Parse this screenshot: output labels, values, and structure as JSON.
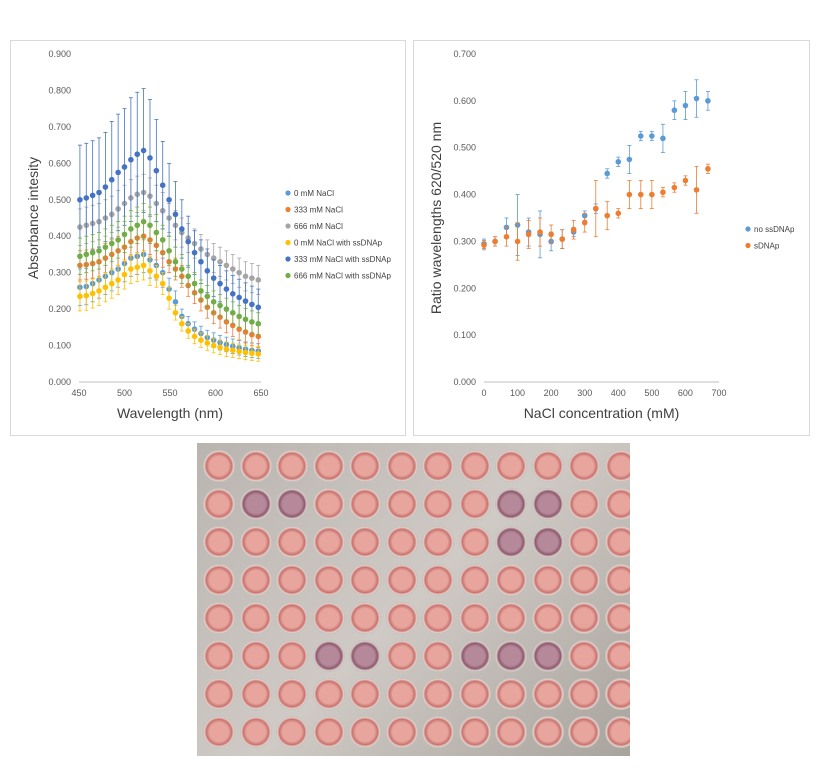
{
  "chart_data": [
    {
      "type": "scatter",
      "xlabel": "Wavelength (nm)",
      "ylabel": "Absorbance intesity",
      "xlim": [
        450,
        650
      ],
      "ylim": [
        0,
        0.9
      ],
      "x_ticks": [
        "450",
        "500",
        "550",
        "600",
        "650"
      ],
      "y_ticks": [
        "0.000",
        "0.100",
        "0.200",
        "0.300",
        "0.400",
        "0.500",
        "0.600",
        "0.700",
        "0.800",
        "0.900"
      ],
      "legend_position": "right",
      "x": [
        451,
        458,
        465,
        472,
        479,
        486,
        493,
        500,
        507,
        514,
        521,
        528,
        535,
        542,
        549,
        556,
        563,
        570,
        577,
        584,
        591,
        598,
        605,
        612,
        619,
        626,
        633,
        640,
        647
      ],
      "series": [
        {
          "name": "0 mM NaCl",
          "color": "#5b9bd5",
          "values": [
            0.26,
            0.262,
            0.27,
            0.28,
            0.29,
            0.3,
            0.31,
            0.325,
            0.34,
            0.345,
            0.35,
            0.335,
            0.32,
            0.3,
            0.255,
            0.22,
            0.18,
            0.16,
            0.145,
            0.133,
            0.122,
            0.115,
            0.108,
            0.103,
            0.098,
            0.094,
            0.09,
            0.087,
            0.085
          ],
          "errors": [
            0.05,
            0.05,
            0.05,
            0.05,
            0.05,
            0.05,
            0.05,
            0.05,
            0.05,
            0.05,
            0.05,
            0.05,
            0.04,
            0.04,
            0.03,
            0.03,
            0.02,
            0.02,
            0.02,
            0.02,
            0.02,
            0.02,
            0.02,
            0.02,
            0.02,
            0.02,
            0.02,
            0.02,
            0.02
          ]
        },
        {
          "name": "333 mM NaCl",
          "color": "#ed7d31",
          "values": [
            0.32,
            0.322,
            0.325,
            0.33,
            0.34,
            0.35,
            0.36,
            0.37,
            0.385,
            0.395,
            0.4,
            0.39,
            0.375,
            0.355,
            0.33,
            0.31,
            0.29,
            0.265,
            0.245,
            0.225,
            0.205,
            0.19,
            0.178,
            0.165,
            0.155,
            0.145,
            0.137,
            0.13,
            0.125
          ],
          "errors": [
            0.04,
            0.04,
            0.04,
            0.04,
            0.04,
            0.04,
            0.04,
            0.04,
            0.04,
            0.04,
            0.04,
            0.04,
            0.04,
            0.04,
            0.03,
            0.03,
            0.03,
            0.03,
            0.03,
            0.03,
            0.03,
            0.03,
            0.03,
            0.03,
            0.03,
            0.03,
            0.03,
            0.03,
            0.03
          ]
        },
        {
          "name": "666 mM NaCl",
          "color": "#a5a5a5",
          "values": [
            0.425,
            0.43,
            0.435,
            0.44,
            0.45,
            0.46,
            0.475,
            0.49,
            0.505,
            0.515,
            0.52,
            0.51,
            0.49,
            0.47,
            0.45,
            0.43,
            0.41,
            0.395,
            0.38,
            0.365,
            0.35,
            0.34,
            0.33,
            0.32,
            0.31,
            0.3,
            0.29,
            0.285,
            0.28
          ],
          "errors": [
            0.05,
            0.05,
            0.05,
            0.05,
            0.05,
            0.05,
            0.05,
            0.05,
            0.05,
            0.05,
            0.05,
            0.05,
            0.05,
            0.05,
            0.04,
            0.04,
            0.04,
            0.04,
            0.04,
            0.04,
            0.04,
            0.04,
            0.04,
            0.04,
            0.04,
            0.04,
            0.04,
            0.04,
            0.04
          ]
        },
        {
          "name": "0 mM NaCl with ssDNAp",
          "color": "#ffc000",
          "values": [
            0.235,
            0.237,
            0.243,
            0.25,
            0.26,
            0.27,
            0.28,
            0.295,
            0.31,
            0.315,
            0.32,
            0.305,
            0.29,
            0.27,
            0.23,
            0.19,
            0.16,
            0.14,
            0.125,
            0.115,
            0.107,
            0.1,
            0.095,
            0.09,
            0.087,
            0.084,
            0.081,
            0.079,
            0.077
          ],
          "errors": [
            0.04,
            0.04,
            0.04,
            0.04,
            0.04,
            0.04,
            0.04,
            0.04,
            0.04,
            0.04,
            0.04,
            0.04,
            0.03,
            0.03,
            0.03,
            0.02,
            0.02,
            0.02,
            0.02,
            0.02,
            0.02,
            0.02,
            0.02,
            0.02,
            0.02,
            0.02,
            0.02,
            0.02,
            0.02
          ]
        },
        {
          "name": "333 mM NaCl with ssDNAp",
          "color": "#4472c4",
          "values": [
            0.5,
            0.505,
            0.512,
            0.52,
            0.535,
            0.555,
            0.575,
            0.59,
            0.61,
            0.625,
            0.635,
            0.615,
            0.58,
            0.54,
            0.5,
            0.46,
            0.42,
            0.385,
            0.355,
            0.33,
            0.305,
            0.285,
            0.27,
            0.255,
            0.242,
            0.232,
            0.222,
            0.213,
            0.205
          ],
          "errors": [
            0.15,
            0.15,
            0.15,
            0.15,
            0.15,
            0.16,
            0.16,
            0.16,
            0.17,
            0.17,
            0.17,
            0.16,
            0.14,
            0.12,
            0.1,
            0.09,
            0.08,
            0.07,
            0.06,
            0.06,
            0.06,
            0.05,
            0.05,
            0.05,
            0.05,
            0.05,
            0.05,
            0.05,
            0.05
          ]
        },
        {
          "name": "666 mM NaCl with ssDNAp",
          "color": "#70ad47",
          "values": [
            0.345,
            0.35,
            0.355,
            0.36,
            0.37,
            0.38,
            0.39,
            0.405,
            0.42,
            0.43,
            0.44,
            0.43,
            0.41,
            0.39,
            0.36,
            0.33,
            0.31,
            0.29,
            0.27,
            0.25,
            0.235,
            0.22,
            0.21,
            0.2,
            0.19,
            0.18,
            0.172,
            0.165,
            0.16
          ],
          "errors": [
            0.05,
            0.05,
            0.05,
            0.05,
            0.05,
            0.05,
            0.05,
            0.05,
            0.05,
            0.05,
            0.05,
            0.05,
            0.05,
            0.04,
            0.04,
            0.04,
            0.04,
            0.03,
            0.03,
            0.03,
            0.03,
            0.03,
            0.03,
            0.03,
            0.03,
            0.03,
            0.03,
            0.03,
            0.03
          ]
        }
      ]
    },
    {
      "type": "scatter",
      "xlabel": "NaCl concentration (mM)",
      "ylabel": "Ratio wavelengths 620/520 nm",
      "xlim": [
        0,
        700
      ],
      "ylim": [
        0,
        0.7
      ],
      "x_ticks": [
        "0",
        "100",
        "200",
        "300",
        "400",
        "500",
        "600",
        "700"
      ],
      "y_ticks": [
        "0.000",
        "0.100",
        "0.200",
        "0.300",
        "0.400",
        "0.500",
        "0.600",
        "0.700"
      ],
      "legend_position": "right",
      "series": [
        {
          "name": "no ssDNAp",
          "color": "#5b9bd5",
          "x": [
            0,
            33,
            67,
            100,
            133,
            167,
            200,
            233,
            267,
            300,
            333,
            367,
            400,
            433,
            467,
            500,
            533,
            567,
            600,
            633,
            667
          ],
          "values": [
            0.295,
            0.3,
            0.33,
            0.335,
            0.32,
            0.315,
            0.3,
            0.305,
            0.32,
            0.355,
            0.37,
            0.445,
            0.47,
            0.475,
            0.525,
            0.525,
            0.52,
            0.58,
            0.59,
            0.605,
            0.6
          ],
          "errors": [
            0.01,
            0.01,
            0.02,
            0.065,
            0.03,
            0.05,
            0.02,
            0.02,
            0.01,
            0.01,
            0.01,
            0.01,
            0.01,
            0.03,
            0.01,
            0.01,
            0.03,
            0.02,
            0.03,
            0.04,
            0.02
          ]
        },
        {
          "name": "sDNAp",
          "color": "#ed7d31",
          "x": [
            0,
            33,
            67,
            100,
            133,
            167,
            200,
            233,
            267,
            300,
            333,
            367,
            400,
            433,
            467,
            500,
            533,
            567,
            600,
            633,
            667
          ],
          "values": [
            0.292,
            0.3,
            0.31,
            0.3,
            0.315,
            0.32,
            0.315,
            0.305,
            0.325,
            0.34,
            0.37,
            0.355,
            0.36,
            0.4,
            0.4,
            0.4,
            0.405,
            0.415,
            0.43,
            0.41,
            0.455
          ],
          "errors": [
            0.01,
            0.01,
            0.02,
            0.04,
            0.03,
            0.03,
            0.02,
            0.02,
            0.02,
            0.02,
            0.06,
            0.03,
            0.01,
            0.03,
            0.03,
            0.03,
            0.01,
            0.01,
            0.01,
            0.05,
            0.01
          ]
        }
      ]
    }
  ],
  "photo": {
    "description_icon": "well-plate-photo",
    "rows": 8,
    "cols": 12
  }
}
